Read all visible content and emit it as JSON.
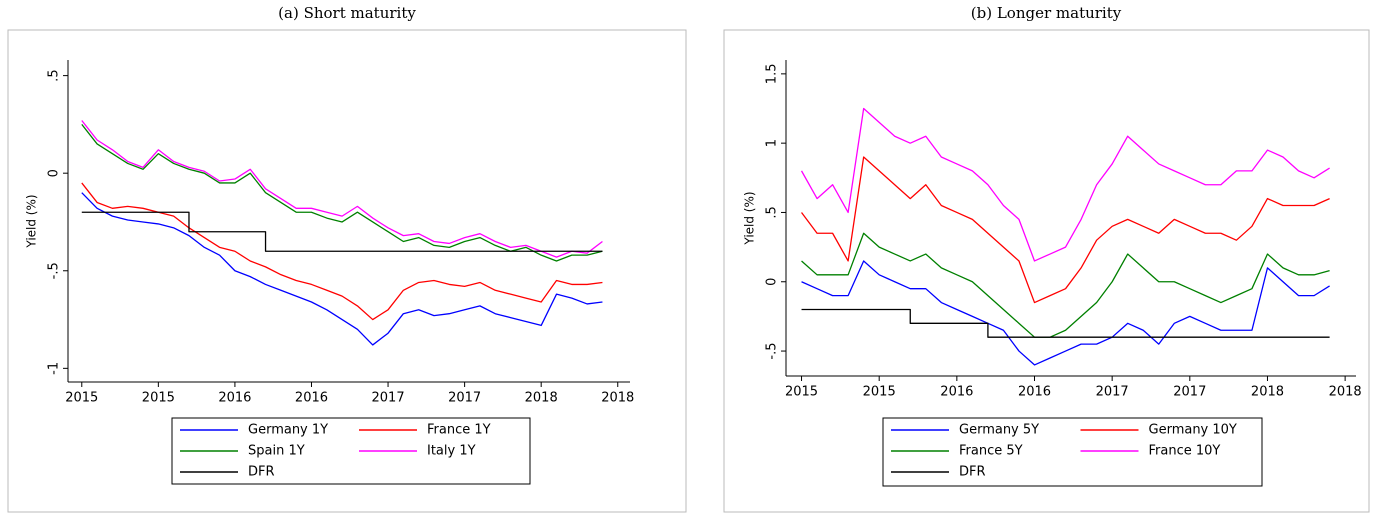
{
  "chart_data": [
    {
      "type": "line",
      "title": "(a) Short maturity",
      "y_label": "Yield (%)",
      "x": [
        2015.0,
        2015.1,
        2015.2,
        2015.3,
        2015.4,
        2015.5,
        2015.6,
        2015.7,
        2015.8,
        2015.9,
        2016.0,
        2016.1,
        2016.2,
        2016.3,
        2016.4,
        2016.5,
        2016.6,
        2016.7,
        2016.8,
        2016.9,
        2017.0,
        2017.1,
        2017.2,
        2017.3,
        2017.4,
        2017.5,
        2017.6,
        2017.7,
        2017.8,
        2017.9,
        2018.0,
        2018.1,
        2018.2,
        2018.3,
        2018.4
      ],
      "series": [
        {
          "name": "Germany 1Y",
          "color": "#0000ff",
          "values": [
            -0.1,
            -0.18,
            -0.22,
            -0.24,
            -0.25,
            -0.26,
            -0.28,
            -0.32,
            -0.38,
            -0.42,
            -0.5,
            -0.53,
            -0.57,
            -0.6,
            -0.63,
            -0.66,
            -0.7,
            -0.75,
            -0.8,
            -0.88,
            -0.82,
            -0.72,
            -0.7,
            -0.73,
            -0.72,
            -0.7,
            -0.68,
            -0.72,
            -0.74,
            -0.76,
            -0.78,
            -0.62,
            -0.64,
            -0.67,
            -0.66
          ]
        },
        {
          "name": "France 1Y",
          "color": "#ff0000",
          "values": [
            -0.05,
            -0.15,
            -0.18,
            -0.17,
            -0.18,
            -0.2,
            -0.22,
            -0.28,
            -0.33,
            -0.38,
            -0.4,
            -0.45,
            -0.48,
            -0.52,
            -0.55,
            -0.57,
            -0.6,
            -0.63,
            -0.68,
            -0.75,
            -0.7,
            -0.6,
            -0.56,
            -0.55,
            -0.57,
            -0.58,
            -0.56,
            -0.6,
            -0.62,
            -0.64,
            -0.66,
            -0.55,
            -0.57,
            -0.57,
            -0.56
          ]
        },
        {
          "name": "Spain 1Y",
          "color": "#008000",
          "values": [
            0.25,
            0.15,
            0.1,
            0.05,
            0.02,
            0.1,
            0.05,
            0.02,
            0.0,
            -0.05,
            -0.05,
            0.0,
            -0.1,
            -0.15,
            -0.2,
            -0.2,
            -0.23,
            -0.25,
            -0.2,
            -0.25,
            -0.3,
            -0.35,
            -0.33,
            -0.37,
            -0.38,
            -0.35,
            -0.33,
            -0.37,
            -0.4,
            -0.38,
            -0.42,
            -0.45,
            -0.42,
            -0.42,
            -0.4
          ]
        },
        {
          "name": "Italy 1Y",
          "color": "#ff00ff",
          "values": [
            0.27,
            0.17,
            0.12,
            0.06,
            0.03,
            0.12,
            0.06,
            0.03,
            0.01,
            -0.04,
            -0.03,
            0.02,
            -0.08,
            -0.13,
            -0.18,
            -0.18,
            -0.2,
            -0.22,
            -0.17,
            -0.23,
            -0.28,
            -0.32,
            -0.31,
            -0.35,
            -0.36,
            -0.33,
            -0.31,
            -0.35,
            -0.38,
            -0.37,
            -0.4,
            -0.43,
            -0.4,
            -0.41,
            -0.35
          ]
        },
        {
          "name": "DFR",
          "color": "#000000",
          "step": "post",
          "values": [
            -0.2,
            -0.2,
            -0.2,
            -0.2,
            -0.2,
            -0.2,
            -0.2,
            -0.3,
            -0.3,
            -0.3,
            -0.3,
            -0.3,
            -0.4,
            -0.4,
            -0.4,
            -0.4,
            -0.4,
            -0.4,
            -0.4,
            -0.4,
            -0.4,
            -0.4,
            -0.4,
            -0.4,
            -0.4,
            -0.4,
            -0.4,
            -0.4,
            -0.4,
            -0.4,
            -0.4,
            -0.4,
            -0.4,
            -0.4,
            -0.4
          ]
        }
      ],
      "xlim": [
        2014.91,
        2018.58
      ],
      "ylim": [
        -1.07,
        0.58
      ],
      "xticks": [
        {
          "value": 2015.0,
          "label": "2015"
        },
        {
          "value": 2015.5,
          "label": "2015"
        },
        {
          "value": 2016.0,
          "label": "2016"
        },
        {
          "value": 2016.5,
          "label": "2016"
        },
        {
          "value": 2017.0,
          "label": "2017"
        },
        {
          "value": 2017.5,
          "label": "2017"
        },
        {
          "value": 2018.0,
          "label": "2018"
        },
        {
          "value": 2018.5,
          "label": "2018"
        }
      ],
      "yticks": [
        -1,
        {
          "value": -0.5,
          "label": "-.5"
        },
        0,
        {
          "value": 0.5,
          "label": ".5"
        }
      ]
    },
    {
      "type": "line",
      "title": "(b) Longer maturity",
      "y_label": "Yield (%)",
      "x": [
        2015.0,
        2015.1,
        2015.2,
        2015.3,
        2015.4,
        2015.5,
        2015.6,
        2015.7,
        2015.8,
        2015.9,
        2016.0,
        2016.1,
        2016.2,
        2016.3,
        2016.4,
        2016.5,
        2016.6,
        2016.7,
        2016.8,
        2016.9,
        2017.0,
        2017.1,
        2017.2,
        2017.3,
        2017.4,
        2017.5,
        2017.6,
        2017.7,
        2017.8,
        2017.9,
        2018.0,
        2018.1,
        2018.2,
        2018.3,
        2018.4
      ],
      "series": [
        {
          "name": "Germany 5Y",
          "color": "#0000ff",
          "values": [
            0.0,
            -0.05,
            -0.1,
            -0.1,
            0.15,
            0.05,
            0.0,
            -0.05,
            -0.05,
            -0.15,
            -0.2,
            -0.25,
            -0.3,
            -0.35,
            -0.5,
            -0.6,
            -0.55,
            -0.5,
            -0.45,
            -0.45,
            -0.4,
            -0.3,
            -0.35,
            -0.45,
            -0.3,
            -0.25,
            -0.3,
            -0.35,
            -0.35,
            -0.35,
            0.1,
            0.0,
            -0.1,
            -0.1,
            -0.03
          ]
        },
        {
          "name": "Germany 10Y",
          "color": "#ff0000",
          "values": [
            0.5,
            0.35,
            0.35,
            0.15,
            0.9,
            0.8,
            0.7,
            0.6,
            0.7,
            0.55,
            0.5,
            0.45,
            0.35,
            0.25,
            0.15,
            -0.15,
            -0.1,
            -0.05,
            0.1,
            0.3,
            0.4,
            0.45,
            0.4,
            0.35,
            0.45,
            0.4,
            0.35,
            0.35,
            0.3,
            0.4,
            0.6,
            0.55,
            0.55,
            0.55,
            0.6
          ]
        },
        {
          "name": "France 5Y",
          "color": "#008000",
          "values": [
            0.15,
            0.05,
            0.05,
            0.05,
            0.35,
            0.25,
            0.2,
            0.15,
            0.2,
            0.1,
            0.05,
            0.0,
            -0.1,
            -0.2,
            -0.3,
            -0.4,
            -0.4,
            -0.35,
            -0.25,
            -0.15,
            0.0,
            0.2,
            0.1,
            0.0,
            0.0,
            -0.05,
            -0.1,
            -0.15,
            -0.1,
            -0.05,
            0.2,
            0.1,
            0.05,
            0.05,
            0.08
          ]
        },
        {
          "name": "France 10Y",
          "color": "#ff00ff",
          "values": [
            0.8,
            0.6,
            0.7,
            0.5,
            1.25,
            1.15,
            1.05,
            1.0,
            1.05,
            0.9,
            0.85,
            0.8,
            0.7,
            0.55,
            0.45,
            0.15,
            0.2,
            0.25,
            0.45,
            0.7,
            0.85,
            1.05,
            0.95,
            0.85,
            0.8,
            0.75,
            0.7,
            0.7,
            0.8,
            0.8,
            0.95,
            0.9,
            0.8,
            0.75,
            0.82
          ]
        },
        {
          "name": "DFR",
          "color": "#000000",
          "step": "post",
          "values": [
            -0.2,
            -0.2,
            -0.2,
            -0.2,
            -0.2,
            -0.2,
            -0.2,
            -0.3,
            -0.3,
            -0.3,
            -0.3,
            -0.3,
            -0.4,
            -0.4,
            -0.4,
            -0.4,
            -0.4,
            -0.4,
            -0.4,
            -0.4,
            -0.4,
            -0.4,
            -0.4,
            -0.4,
            -0.4,
            -0.4,
            -0.4,
            -0.4,
            -0.4,
            -0.4,
            -0.4,
            -0.4,
            -0.4,
            -0.4,
            -0.4
          ]
        }
      ],
      "xlim": [
        2014.9,
        2018.57
      ],
      "ylim": [
        -0.68,
        1.6
      ],
      "xticks": [
        {
          "value": 2015.0,
          "label": "2015"
        },
        {
          "value": 2015.5,
          "label": "2015"
        },
        {
          "value": 2016.0,
          "label": "2016"
        },
        {
          "value": 2016.5,
          "label": "2016"
        },
        {
          "value": 2017.0,
          "label": "2017"
        },
        {
          "value": 2017.5,
          "label": "2017"
        },
        {
          "value": 2018.0,
          "label": "2018"
        },
        {
          "value": 2018.5,
          "label": "2018"
        }
      ],
      "yticks": [
        {
          "value": -0.5,
          "label": "-.5"
        },
        0,
        {
          "value": 0.5,
          "label": ".5"
        },
        1,
        1.5
      ]
    }
  ]
}
